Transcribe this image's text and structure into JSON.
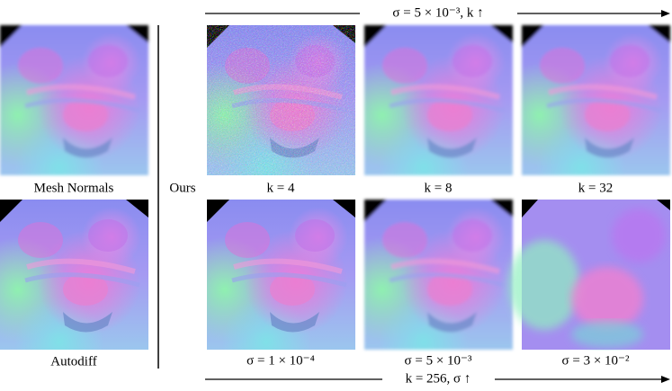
{
  "figure": {
    "top_caption": "σ  = 5 × 10⁻³, k ↑",
    "bottom_caption": "k = 256, σ ↑",
    "left_labels": [
      "Mesh Normals",
      "Autodiff"
    ],
    "ours_label": "Ours",
    "top_row_labels": [
      "k = 4",
      "k = 8",
      "k = 32"
    ],
    "bottom_row_labels": [
      "σ = 1 × 10⁻⁴",
      "σ = 5 × 10⁻³",
      "σ = 3 × 10⁻²"
    ]
  }
}
